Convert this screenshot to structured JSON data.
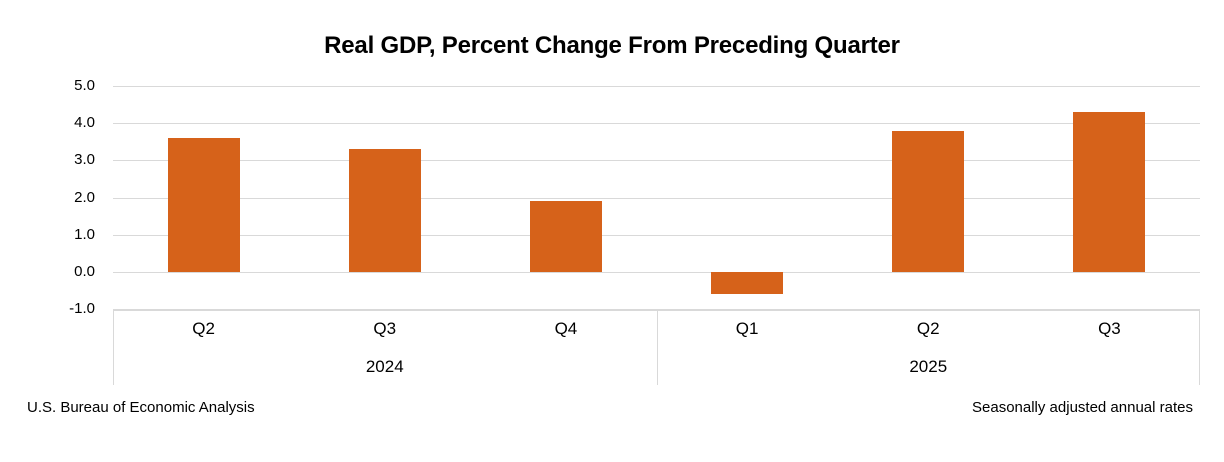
{
  "title": "Real GDP, Percent Change From Preceding Quarter",
  "footer": {
    "left": "U.S. Bureau of Economic Analysis",
    "right": "Seasonally adjusted annual rates"
  },
  "colors": {
    "bar": "#D6621A",
    "gridline": "#D9D9D9",
    "axis_box_border": "#D9D9D9",
    "text": "#000000"
  },
  "chart_data": {
    "type": "bar",
    "title": "Real GDP, Percent Change From Preceding Quarter",
    "categories": [
      "Q2",
      "Q3",
      "Q4",
      "Q1",
      "Q2",
      "Q3"
    ],
    "values": [
      3.6,
      3.3,
      1.9,
      -0.6,
      3.8,
      4.3
    ],
    "groups": [
      {
        "year": "2024",
        "quarters": [
          "Q2",
          "Q3",
          "Q4"
        ],
        "values": [
          3.6,
          3.3,
          1.9
        ]
      },
      {
        "year": "2025",
        "quarters": [
          "Q1",
          "Q2",
          "Q3"
        ],
        "values": [
          -0.6,
          3.8,
          4.3
        ]
      }
    ],
    "ylim": [
      -1.0,
      5.0
    ],
    "yticks": [
      "5.0",
      "4.0",
      "3.0",
      "2.0",
      "1.0",
      "0.0",
      "-1.0"
    ],
    "grid": true,
    "legend": "none",
    "xlabel": "",
    "ylabel": ""
  }
}
